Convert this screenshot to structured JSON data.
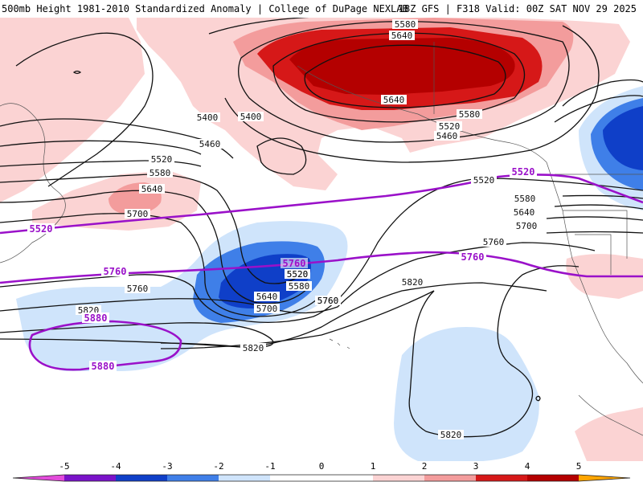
{
  "header": {
    "left": "500mb Height 1981-2010 Standardized Anomaly | College of DuPage NEXLAB",
    "right": "18Z GFS | F318 Valid: 00Z SAT NOV 29 2025"
  },
  "colors": {
    "neg5": "#e34cdb",
    "neg4": "#7a12c9",
    "neg3": "#0f3fc8",
    "neg2": "#3f7fe8",
    "neg1": "#cfe4fb",
    "zero": "#ffffff",
    "pos1": "#fbd3d3",
    "pos2": "#f39c9c",
    "pos3": "#d61818",
    "pos4": "#b40000",
    "pos5": "#ffa500",
    "contour": "#111111",
    "highlight": "#9a11c9"
  },
  "contours": {
    "labels": [
      "5580",
      "5640",
      "5640",
      "5520",
      "5580",
      "5460",
      "5400",
      "5400",
      "5460",
      "5520",
      "5580",
      "5640",
      "5700",
      "5520",
      "5520",
      "5580",
      "5640",
      "5700",
      "5760",
      "5760",
      "5520",
      "5580",
      "5640",
      "5700",
      "5760",
      "5760",
      "5820",
      "5820",
      "5820",
      "5820"
    ],
    "highlight_labels": [
      "5520",
      "5520",
      "5760",
      "5760",
      "5760",
      "5880",
      "5880"
    ]
  },
  "legend": {
    "ticks": [
      "-5",
      "-4",
      "-3",
      "-2",
      "-1",
      "0",
      "1",
      "2",
      "3",
      "4",
      "5"
    ]
  }
}
